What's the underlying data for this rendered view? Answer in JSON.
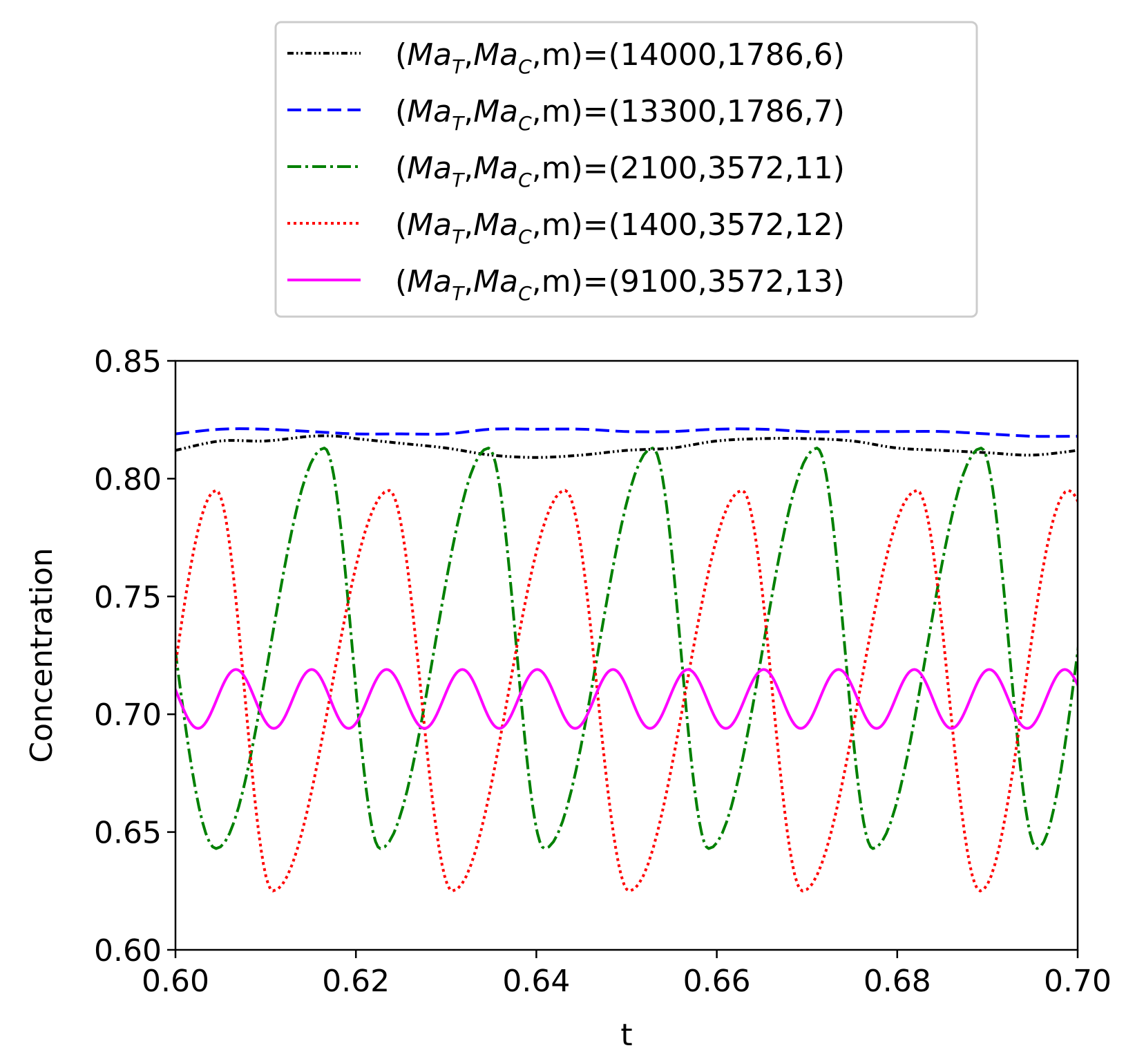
{
  "chart_data": {
    "type": "line",
    "title": "",
    "xlabel": "t",
    "ylabel": "Concentration",
    "xlim": [
      0.6,
      0.7
    ],
    "ylim": [
      0.6,
      0.85
    ],
    "xticks": [
      0.6,
      0.62,
      0.64,
      0.66,
      0.68,
      0.7
    ],
    "xtick_labels": [
      "0.60",
      "0.62",
      "0.64",
      "0.66",
      "0.68",
      "0.70"
    ],
    "yticks": [
      0.6,
      0.65,
      0.7,
      0.75,
      0.8,
      0.85
    ],
    "ytick_labels": [
      "0.60",
      "0.65",
      "0.70",
      "0.75",
      "0.80",
      "0.85"
    ],
    "grid": false,
    "legend_placement": "top-center-outside",
    "legend_prefix": "(Ma",
    "legend_sub_T": "T",
    "legend_mid": ",Ma",
    "legend_sub_C": "C",
    "legend_suffix": ",m)=",
    "series": [
      {
        "name": "(Ma_T,Ma_C,m)=(14000,1786,6)",
        "label_values": "(14000,1786,6)",
        "color": "#000000",
        "style": "dash-dot-dot",
        "x": [
          0.6,
          0.605,
          0.61,
          0.615,
          0.618,
          0.62,
          0.625,
          0.63,
          0.635,
          0.64,
          0.645,
          0.65,
          0.655,
          0.66,
          0.665,
          0.67,
          0.675,
          0.68,
          0.685,
          0.69,
          0.695,
          0.7
        ],
        "y": [
          0.812,
          0.816,
          0.816,
          0.818,
          0.818,
          0.817,
          0.815,
          0.813,
          0.81,
          0.809,
          0.81,
          0.812,
          0.813,
          0.816,
          0.817,
          0.817,
          0.816,
          0.813,
          0.812,
          0.811,
          0.81,
          0.812
        ]
      },
      {
        "name": "(Ma_T,Ma_C,m)=(13300,1786,7)",
        "label_values": "(13300,1786,7)",
        "color": "#0000ff",
        "style": "dashed",
        "x": [
          0.6,
          0.605,
          0.61,
          0.615,
          0.62,
          0.625,
          0.63,
          0.635,
          0.64,
          0.645,
          0.65,
          0.655,
          0.66,
          0.665,
          0.67,
          0.675,
          0.68,
          0.685,
          0.69,
          0.695,
          0.7
        ],
        "y": [
          0.819,
          0.821,
          0.821,
          0.82,
          0.819,
          0.819,
          0.819,
          0.821,
          0.821,
          0.821,
          0.82,
          0.82,
          0.821,
          0.821,
          0.82,
          0.82,
          0.82,
          0.82,
          0.819,
          0.818,
          0.818
        ]
      },
      {
        "name": "(Ma_T,Ma_C,m)=(2100,3572,11)",
        "label_values": "(2100,3572,11)",
        "color": "#008000",
        "style": "dash-dot",
        "period": 0.0182,
        "min": 0.643,
        "max": 0.813,
        "peaks_t": [
          0.6165,
          0.6347,
          0.6529,
          0.6711,
          0.6893
        ],
        "troughs_t": [
          0.6045,
          0.6227,
          0.6409,
          0.6591,
          0.6773,
          0.6955
        ]
      },
      {
        "name": "(Ma_T,Ma_C,m)=(1400,3572,12)",
        "label_values": "(1400,3572,12)",
        "color": "#ff0000",
        "style": "dotted",
        "period": 0.0196,
        "min": 0.625,
        "max": 0.795,
        "peaks_t": [
          0.6045,
          0.6237,
          0.6432,
          0.6628,
          0.6822
        ],
        "troughs_t": [
          0.6108,
          0.6307,
          0.6503,
          0.6695,
          0.6892
        ]
      },
      {
        "name": "(Ma_T,Ma_C,m)=(9100,3572,13)",
        "label_values": "(9100,3572,13)",
        "color": "#ff00ff",
        "style": "solid",
        "period": 0.00835,
        "min": 0.694,
        "max": 0.719,
        "peaks_t": [
          0.6067,
          0.6151,
          0.6234,
          0.6318,
          0.6401,
          0.6485,
          0.6568,
          0.6652,
          0.6735,
          0.6819,
          0.6902
        ],
        "troughs_t": [
          0.6025,
          0.6109,
          0.6192,
          0.6276,
          0.6359,
          0.6443,
          0.6526,
          0.661,
          0.6693,
          0.6777,
          0.686,
          0.6944
        ]
      }
    ]
  }
}
